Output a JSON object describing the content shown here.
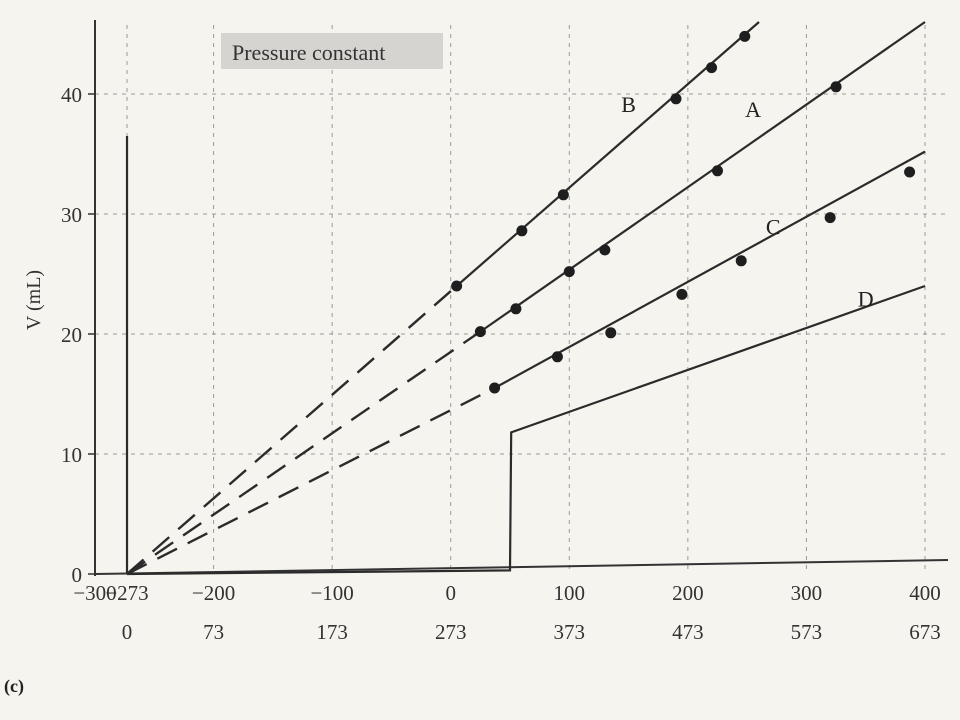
{
  "chart_data": {
    "type": "line",
    "title": "Pressure constant",
    "panel_label": "(c)",
    "ylabel": "V (mL)",
    "xlabel": "",
    "xlim": [
      -300,
      400
    ],
    "ylim": [
      0,
      45
    ],
    "grid": true,
    "x_ticks_celsius": [
      "−300",
      "−273",
      "−200",
      "−100",
      "0",
      "100",
      "200",
      "300",
      "400"
    ],
    "x_ticks_celsius_values": [
      -300,
      -273,
      -200,
      -100,
      0,
      100,
      200,
      300,
      400
    ],
    "x_ticks_kelvin": [
      "0",
      "73",
      "173",
      "273",
      "373",
      "473",
      "573",
      "673"
    ],
    "x_ticks_kelvin_values": [
      -273,
      -200,
      -100,
      0,
      100,
      200,
      300,
      400
    ],
    "y_ticks": [
      "0",
      "10",
      "20",
      "30",
      "40"
    ],
    "y_ticks_values": [
      0,
      10,
      20,
      30,
      40
    ],
    "series": [
      {
        "name": "B",
        "extrapolated": [
          [
            -273,
            0
          ],
          [
            5,
            24
          ]
        ],
        "line": [
          [
            5,
            24
          ],
          [
            260,
            46
          ]
        ],
        "points": [
          [
            5,
            24
          ],
          [
            60,
            28.6
          ],
          [
            95,
            31.6
          ],
          [
            190,
            39.6
          ],
          [
            220,
            42.2
          ],
          [
            248,
            44.8
          ]
        ],
        "label_pos": [
          150,
          38.5
        ]
      },
      {
        "name": "A",
        "extrapolated": [
          [
            -273,
            0
          ],
          [
            25,
            20.2
          ]
        ],
        "line": [
          [
            25,
            20.2
          ],
          [
            400,
            46
          ]
        ],
        "points": [
          [
            25,
            20.2
          ],
          [
            55,
            22.1
          ],
          [
            100,
            25.2
          ],
          [
            130,
            27
          ],
          [
            225,
            33.6
          ],
          [
            325,
            40.6
          ]
        ],
        "label_pos": [
          255,
          38.1
        ]
      },
      {
        "name": "C",
        "extrapolated": [
          [
            -273,
            0
          ],
          [
            37,
            15.5
          ]
        ],
        "line": [
          [
            37,
            15.5
          ],
          [
            400,
            35.2
          ]
        ],
        "points": [
          [
            37,
            15.5
          ],
          [
            90,
            18.1
          ],
          [
            135,
            20.1
          ],
          [
            195,
            23.3
          ],
          [
            245,
            26.1
          ],
          [
            320,
            29.7
          ],
          [
            387,
            33.5
          ]
        ],
        "label_pos": [
          272,
          28.3
        ]
      },
      {
        "name": "D",
        "steps": [
          [
            -273,
            0
          ],
          [
            -273,
            36.5
          ]
        ],
        "polyline": [
          [
            -273,
            0
          ],
          [
            50,
            0.3
          ],
          [
            51,
            11.8
          ],
          [
            400,
            24
          ]
        ],
        "points": [],
        "label_pos": [
          350,
          22.3
        ]
      }
    ]
  }
}
